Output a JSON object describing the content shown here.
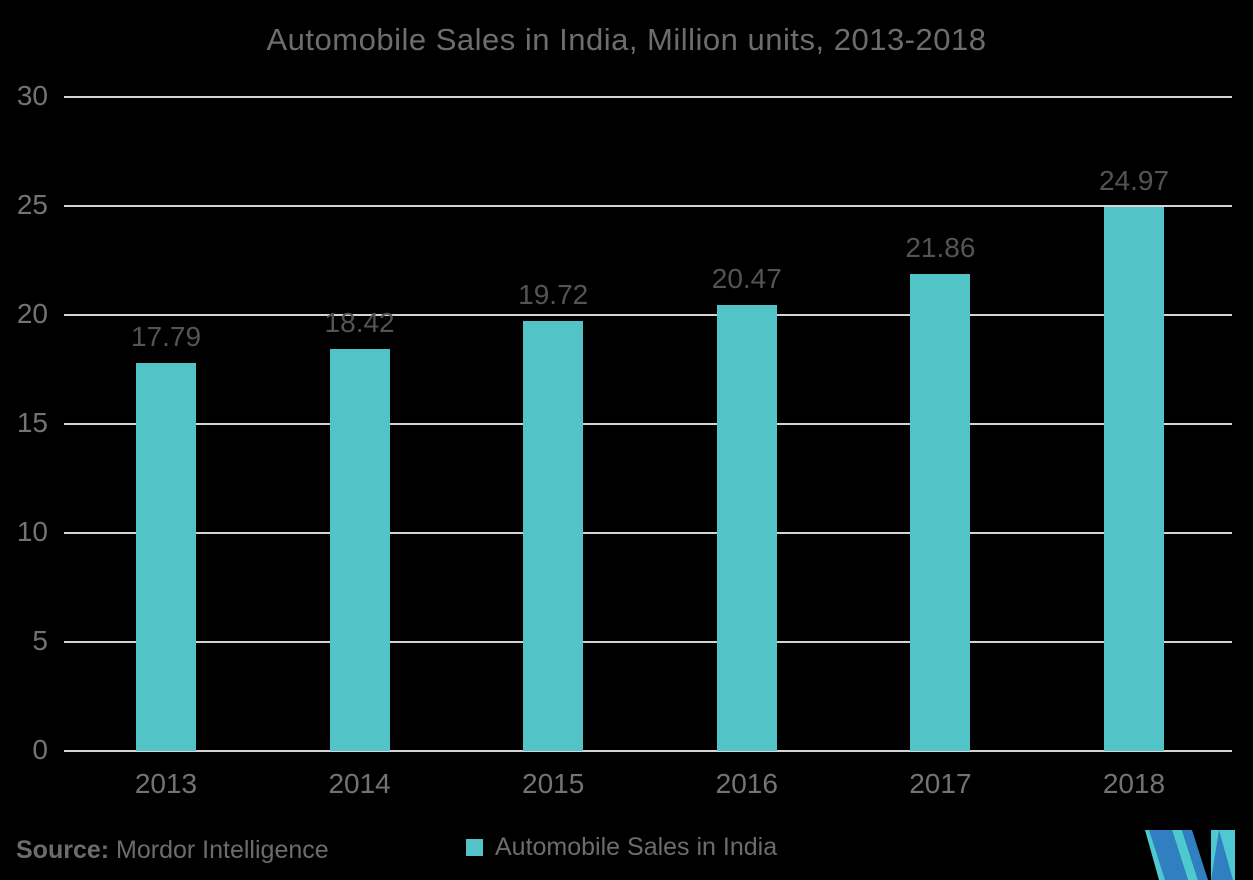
{
  "title": "Automobile Sales in India, Million units, 2013-2018",
  "chart_data": {
    "type": "bar",
    "title": "Automobile Sales in India, Million units, 2013-2018",
    "categories": [
      "2013",
      "2014",
      "2015",
      "2016",
      "2017",
      "2018"
    ],
    "series": [
      {
        "name": "Automobile Sales in India",
        "values": [
          17.79,
          18.42,
          19.72,
          20.47,
          21.86,
          24.97
        ]
      }
    ],
    "value_labels": [
      "17.79",
      "18.42",
      "19.72",
      "20.47",
      "21.86",
      "24.97"
    ],
    "xlabel": "",
    "ylabel": "",
    "ylim": [
      0,
      30
    ],
    "yticks": [
      0,
      5,
      10,
      15,
      20,
      25,
      30
    ],
    "grid": true,
    "legend_position": "bottom"
  },
  "footer": {
    "source_label": "Source:",
    "source_value": " Mordor Intelligence",
    "legend_label": "Automobile Sales in India",
    "logo_name": "mordor-intelligence-logo"
  },
  "colors": {
    "background": "#000000",
    "bar": "#52C4C8",
    "gridline": "#D4D4D4",
    "title_text": "#6B6D6F",
    "axis_text": "#737373",
    "value_text": "#545454",
    "footer_text": "#6A6C6E",
    "logo_blue": "#2F7FC1",
    "logo_teal": "#4FC9D1"
  }
}
